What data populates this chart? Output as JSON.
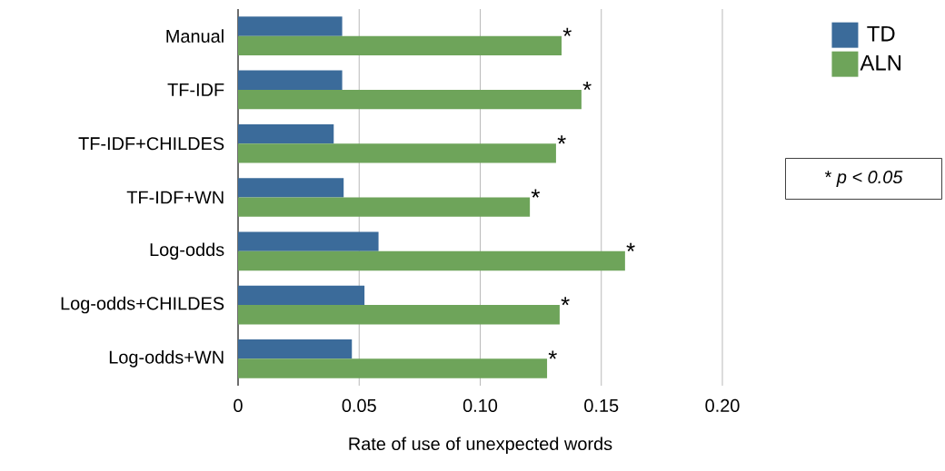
{
  "chart_data": {
    "type": "bar",
    "orientation": "horizontal",
    "xlabel": "Rate of use of unexpected words",
    "categories": [
      "Manual",
      "TF-IDF",
      "TF-IDF+CHILDES",
      "TF-IDF+WN",
      "Log-odds",
      "Log-odds+CHILDES",
      "Log-odds+WN"
    ],
    "series": [
      {
        "name": "TD",
        "color": "#3b6b9a",
        "values": [
          0.043,
          0.043,
          0.0395,
          0.0436,
          0.058,
          0.0522,
          0.047
        ]
      },
      {
        "name": "ALN",
        "color": "#6ea45a",
        "values": [
          0.1336,
          0.1418,
          0.1313,
          0.1205,
          0.1598,
          0.1328,
          0.1276
        ]
      }
    ],
    "xlim": [
      0,
      0.2
    ],
    "xticks": [
      0,
      0.05,
      {
        "value": 0.1,
        "label": "0.10"
      },
      0.15,
      {
        "value": 0.2,
        "label": "0.20"
      }
    ],
    "grid": "x",
    "legend": "right",
    "annotations": [
      {
        "text": "*",
        "x": 0.1336,
        "y": "Manual"
      },
      {
        "text": "*",
        "x": 0.1418,
        "y": "TF-IDF"
      },
      {
        "text": "*",
        "x": 0.1313,
        "y": "TF-IDF+CHILDES"
      },
      {
        "text": "*",
        "x": 0.1205,
        "y": "TF-IDF+WN"
      },
      {
        "text": "*",
        "x": 0.1598,
        "y": "Log-odds"
      },
      {
        "text": "*",
        "x": 0.1328,
        "y": "Log-odds+CHILDES"
      },
      {
        "text": "*",
        "x": 0.1276,
        "y": "Log-odds+WN"
      },
      "* *p < 0.05*"
    ]
  }
}
